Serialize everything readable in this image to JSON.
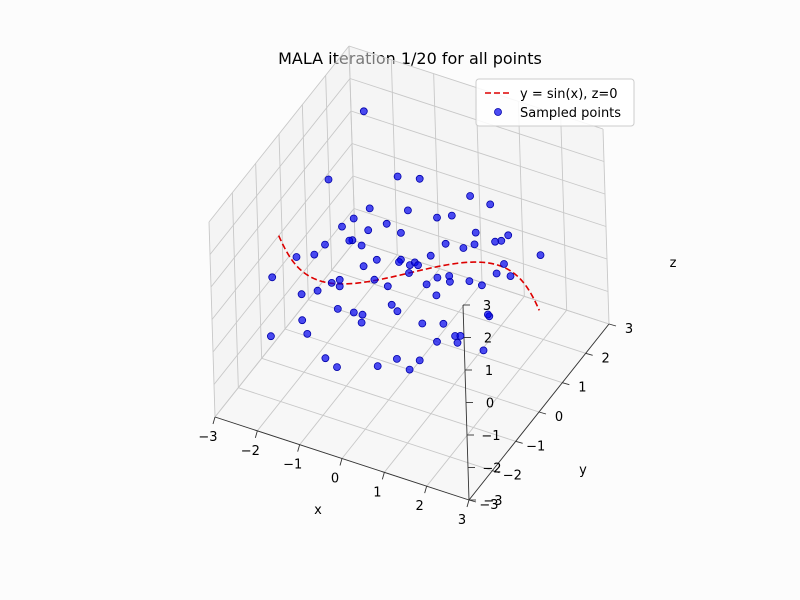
{
  "chart_data": {
    "type": "scatter",
    "title": "MALA iteration 1/20 for all points",
    "xlabel": "x",
    "ylabel": "y",
    "zlabel": "z",
    "xlim": [
      -3,
      3
    ],
    "ylim": [
      -3,
      3
    ],
    "zlim": [
      -3,
      3
    ],
    "xticks": [
      "−3",
      "−2",
      "−1",
      "0",
      "1",
      "2",
      "3"
    ],
    "yticks": [
      "−3",
      "−2",
      "−1",
      "0",
      "1",
      "2",
      "3"
    ],
    "zticks": [
      "−3",
      "−2",
      "−1",
      "0",
      "1",
      "2",
      "3"
    ],
    "grid": true,
    "legend_position": "top-right",
    "series": [
      {
        "name": "y = sin(x), z=0",
        "kind": "line",
        "style": "dashed",
        "color": "#dd0000",
        "function": "y = sin(x), z = 0"
      },
      {
        "name": "Sampled points",
        "kind": "scatter",
        "color": "#0000ee",
        "points": [
          [
            -2.2,
            0.6,
            1.4
          ],
          [
            -2.0,
            1.8,
            2.5
          ],
          [
            -2.4,
            -1.5,
            0.2
          ],
          [
            -1.5,
            0.3,
            0.1
          ],
          [
            -1.8,
            0.9,
            0.1
          ],
          [
            -1.2,
            -0.8,
            -0.2
          ],
          [
            -1.0,
            0.1,
            0.8
          ],
          [
            -0.5,
            0.9,
            0.9
          ],
          [
            -0.3,
            0.2,
            0.1
          ],
          [
            0.2,
            -0.3,
            0.6
          ],
          [
            0.6,
            0.8,
            1.3
          ],
          [
            1.1,
            0.9,
            0.9
          ],
          [
            1.2,
            -0.4,
            0.6
          ],
          [
            1.7,
            1.2,
            0.8
          ],
          [
            2.1,
            0.3,
            0.9
          ],
          [
            -2.3,
            -1.8,
            -1.3
          ],
          [
            -1.6,
            -1.7,
            -0.6
          ],
          [
            -0.9,
            -2.0,
            -1.2
          ],
          [
            -0.3,
            -1.5,
            -0.3
          ],
          [
            0.4,
            -2.1,
            -0.8
          ],
          [
            1.1,
            -2.0,
            -0.7
          ],
          [
            1.8,
            -1.2,
            -0.3
          ],
          [
            2.3,
            -1.0,
            -0.5
          ],
          [
            0.0,
            0.0,
            0.0
          ],
          [
            0.5,
            0.3,
            -0.2
          ],
          [
            -0.6,
            -0.4,
            -0.1
          ],
          [
            1.5,
            0.4,
            -0.1
          ],
          [
            -1.4,
            0.5,
            -0.2
          ],
          [
            0.8,
            -0.9,
            -0.4
          ],
          [
            -0.1,
            1.4,
            0.4
          ],
          [
            -1.9,
            -0.6,
            0.3
          ],
          [
            0.2,
            -1.1,
            0.1
          ],
          [
            1.3,
            1.6,
            0.1
          ],
          [
            -0.8,
            1.1,
            -0.1
          ],
          [
            2.0,
            -0.2,
            -0.3
          ],
          [
            -2.1,
            0.2,
            -0.2
          ],
          [
            -1.1,
            -1.3,
            0.4
          ],
          [
            0.9,
            0.1,
            0.2
          ],
          [
            -0.4,
            -2.4,
            -0.9
          ],
          [
            1.6,
            -1.7,
            0.1
          ],
          [
            0.3,
            2.1,
            0.6
          ],
          [
            -1.3,
            1.9,
            0.7
          ],
          [
            0.7,
            -0.5,
            0.4
          ],
          [
            -0.2,
            0.6,
            -0.3
          ],
          [
            1.9,
            0.9,
            -0.1
          ],
          [
            -0.7,
            -0.1,
            0.2
          ],
          [
            0.1,
            -0.7,
            -0.5
          ],
          [
            1.0,
            -1.4,
            -1.0
          ],
          [
            -1.6,
            -0.1,
            -0.8
          ],
          [
            2.4,
            1.3,
            0.4
          ],
          [
            -2.5,
            -0.3,
            -0.3
          ],
          [
            0.6,
            1.7,
            -0.4
          ],
          [
            -0.9,
            0.7,
            0.5
          ],
          [
            1.4,
            -0.6,
            -0.8
          ],
          [
            -0.5,
            -1.0,
            0.9
          ],
          [
            0.3,
            0.4,
            0.3
          ],
          [
            -1.7,
            1.4,
            0.0
          ],
          [
            1.2,
            0.2,
            1.1
          ],
          [
            -0.1,
            -1.8,
            0.3
          ],
          [
            0.8,
            1.1,
            -0.9
          ],
          [
            -1.2,
            -2.2,
            -0.4
          ],
          [
            2.2,
            -0.6,
            0.2
          ],
          [
            -0.6,
            1.6,
            1.2
          ],
          [
            0.4,
            -1.3,
            -1.3
          ],
          [
            1.7,
            -0.9,
            -0.4
          ],
          [
            -2.0,
            -1.0,
            -0.6
          ],
          [
            -0.3,
            0.9,
            -0.7
          ],
          [
            0.9,
            -0.2,
            -1.0
          ],
          [
            -1.0,
            -0.6,
            -1.1
          ],
          [
            1.5,
            1.0,
            0.7
          ],
          [
            0.0,
            -0.4,
            0.7
          ],
          [
            -1.4,
            0.0,
            0.4
          ],
          [
            0.6,
            2.4,
            0.2
          ],
          [
            -0.8,
            -1.6,
            0.0
          ],
          [
            1.8,
            0.5,
            0.3
          ],
          [
            -2.2,
            1.1,
            -0.5
          ],
          [
            0.2,
            1.2,
            -0.1
          ],
          [
            -0.4,
            -0.2,
            -0.4
          ],
          [
            1.1,
            -0.8,
            0.5
          ],
          [
            -1.5,
            -1.2,
            -0.1
          ]
        ]
      }
    ]
  }
}
